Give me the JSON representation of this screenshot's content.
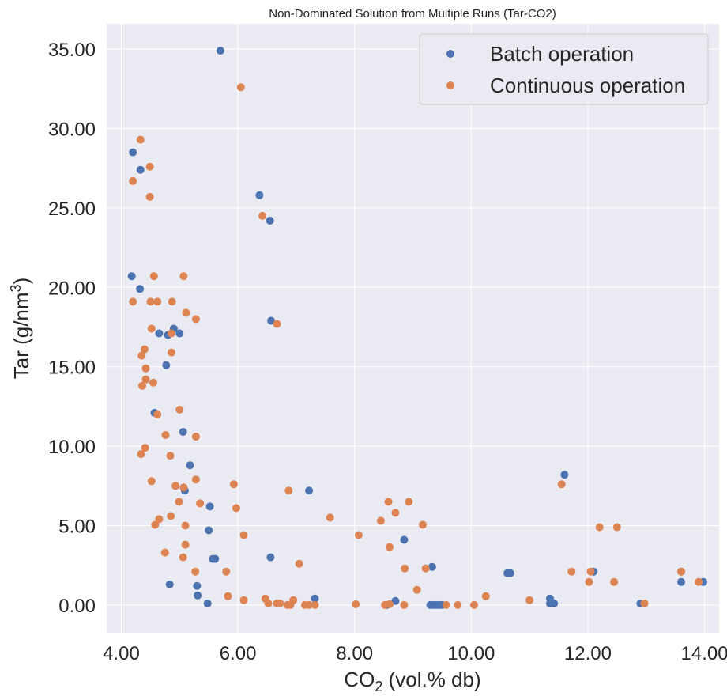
{
  "chart_data": {
    "type": "scatter",
    "title": "Non-Dominated Solution from Multiple Runs (Tar-CO2)",
    "xlabel": "CO",
    "xlabel_sub": "2",
    "xlabel_rest": " (vol.% db)",
    "ylabel": "Tar (g/nm",
    "ylabel_sup": "3",
    "ylabel_rest": ")",
    "xlim": [
      3.75,
      14.25
    ],
    "ylim": [
      -1.75,
      36.6
    ],
    "xticks": [
      4,
      6,
      8,
      10,
      12,
      14
    ],
    "xtick_labels": [
      "4.00",
      "6.00",
      "8.00",
      "10.00",
      "12.00",
      "14.00"
    ],
    "yticks": [
      0,
      5,
      10,
      15,
      20,
      25,
      30,
      35
    ],
    "ytick_labels": [
      "0.00",
      "5.00",
      "10.00",
      "15.00",
      "20.00",
      "25.00",
      "30.00",
      "35.00"
    ],
    "grid": true,
    "legend_position": "top-right",
    "colors": {
      "background": "#eaeaf2",
      "grid": "#ffffff",
      "batch": "#4c72b0",
      "continuous": "#dd8452"
    },
    "series": [
      {
        "name": "Batch operation",
        "color": "#4c72b0",
        "points": [
          [
            5.7,
            34.9
          ],
          [
            4.2,
            28.5
          ],
          [
            4.33,
            27.4
          ],
          [
            6.37,
            25.8
          ],
          [
            6.55,
            24.2
          ],
          [
            4.18,
            20.7
          ],
          [
            4.32,
            19.9
          ],
          [
            6.57,
            17.9
          ],
          [
            4.9,
            17.4
          ],
          [
            4.65,
            17.1
          ],
          [
            4.8,
            17.0
          ],
          [
            5.0,
            17.1
          ],
          [
            4.77,
            15.1
          ],
          [
            4.57,
            12.1
          ],
          [
            5.06,
            10.9
          ],
          [
            5.18,
            8.8
          ],
          [
            5.09,
            7.2
          ],
          [
            7.22,
            7.2
          ],
          [
            11.6,
            8.2
          ],
          [
            5.52,
            6.2
          ],
          [
            5.5,
            4.7
          ],
          [
            8.85,
            4.1
          ],
          [
            6.56,
            3.0
          ],
          [
            5.57,
            2.9
          ],
          [
            5.61,
            2.9
          ],
          [
            9.33,
            2.4
          ],
          [
            10.62,
            2.0
          ],
          [
            10.67,
            2.0
          ],
          [
            12.1,
            2.1
          ],
          [
            13.6,
            2.1
          ],
          [
            4.83,
            1.3
          ],
          [
            5.3,
            1.2
          ],
          [
            13.6,
            1.45
          ],
          [
            13.98,
            1.45
          ],
          [
            5.31,
            0.6
          ],
          [
            7.32,
            0.4
          ],
          [
            8.7,
            0.25
          ],
          [
            11.35,
            0.4
          ],
          [
            11.35,
            0.1
          ],
          [
            11.42,
            0.1
          ],
          [
            12.9,
            0.1
          ],
          [
            5.48,
            0.1
          ],
          [
            9.3,
            0.0
          ],
          [
            9.35,
            0.0
          ],
          [
            9.4,
            0.0
          ],
          [
            9.45,
            0.0
          ],
          [
            9.5,
            0.0
          ],
          [
            8.55,
            0.0
          ]
        ]
      },
      {
        "name": "Continuous operation",
        "color": "#dd8452",
        "points": [
          [
            6.05,
            32.6
          ],
          [
            4.33,
            29.3
          ],
          [
            4.49,
            27.6
          ],
          [
            4.2,
            26.7
          ],
          [
            4.49,
            25.7
          ],
          [
            6.42,
            24.5
          ],
          [
            4.56,
            20.7
          ],
          [
            5.07,
            20.7
          ],
          [
            4.2,
            19.1
          ],
          [
            4.5,
            19.1
          ],
          [
            4.62,
            19.1
          ],
          [
            4.87,
            19.1
          ],
          [
            5.11,
            18.4
          ],
          [
            5.28,
            18.0
          ],
          [
            6.67,
            17.7
          ],
          [
            4.52,
            17.4
          ],
          [
            4.86,
            17.1
          ],
          [
            4.4,
            16.1
          ],
          [
            4.35,
            15.7
          ],
          [
            4.86,
            15.9
          ],
          [
            4.42,
            14.9
          ],
          [
            4.42,
            14.2
          ],
          [
            4.55,
            14.0
          ],
          [
            4.36,
            13.8
          ],
          [
            5.0,
            12.3
          ],
          [
            4.62,
            12.0
          ],
          [
            4.76,
            10.7
          ],
          [
            5.28,
            10.6
          ],
          [
            4.41,
            9.9
          ],
          [
            4.34,
            9.5
          ],
          [
            4.84,
            9.4
          ],
          [
            4.52,
            7.8
          ],
          [
            5.28,
            7.9
          ],
          [
            5.93,
            7.6
          ],
          [
            4.93,
            7.5
          ],
          [
            5.07,
            7.4
          ],
          [
            6.87,
            7.2
          ],
          [
            11.55,
            7.6
          ],
          [
            4.99,
            6.5
          ],
          [
            5.35,
            6.4
          ],
          [
            5.97,
            6.1
          ],
          [
            8.58,
            6.5
          ],
          [
            8.93,
            6.5
          ],
          [
            4.65,
            5.4
          ],
          [
            4.85,
            5.6
          ],
          [
            4.58,
            5.05
          ],
          [
            5.1,
            5.0
          ],
          [
            7.58,
            5.5
          ],
          [
            8.45,
            5.3
          ],
          [
            8.7,
            5.8
          ],
          [
            9.17,
            5.05
          ],
          [
            12.2,
            4.9
          ],
          [
            12.5,
            4.9
          ],
          [
            6.1,
            4.4
          ],
          [
            8.07,
            4.4
          ],
          [
            4.75,
            3.3
          ],
          [
            5.1,
            3.8
          ],
          [
            5.06,
            3.0
          ],
          [
            8.6,
            3.65
          ],
          [
            7.05,
            2.6
          ],
          [
            5.27,
            2.1
          ],
          [
            5.8,
            2.1
          ],
          [
            8.86,
            2.3
          ],
          [
            9.22,
            2.3
          ],
          [
            11.72,
            2.1
          ],
          [
            12.05,
            2.1
          ],
          [
            13.6,
            2.1
          ],
          [
            12.02,
            1.45
          ],
          [
            12.45,
            1.45
          ],
          [
            13.9,
            1.45
          ],
          [
            9.07,
            0.95
          ],
          [
            5.83,
            0.55
          ],
          [
            10.25,
            0.55
          ],
          [
            6.1,
            0.3
          ],
          [
            6.47,
            0.4
          ],
          [
            6.95,
            0.3
          ],
          [
            11.0,
            0.3
          ],
          [
            6.52,
            0.1
          ],
          [
            6.67,
            0.1
          ],
          [
            6.72,
            0.1
          ],
          [
            6.85,
            0.0
          ],
          [
            6.9,
            0.0
          ],
          [
            7.15,
            0.0
          ],
          [
            7.22,
            0.0
          ],
          [
            7.32,
            0.0
          ],
          [
            8.02,
            0.05
          ],
          [
            8.52,
            0.0
          ],
          [
            8.6,
            0.05
          ],
          [
            8.85,
            0.0
          ],
          [
            9.57,
            0.0
          ],
          [
            9.77,
            0.0
          ],
          [
            10.05,
            0.0
          ],
          [
            12.97,
            0.1
          ]
        ]
      }
    ]
  }
}
